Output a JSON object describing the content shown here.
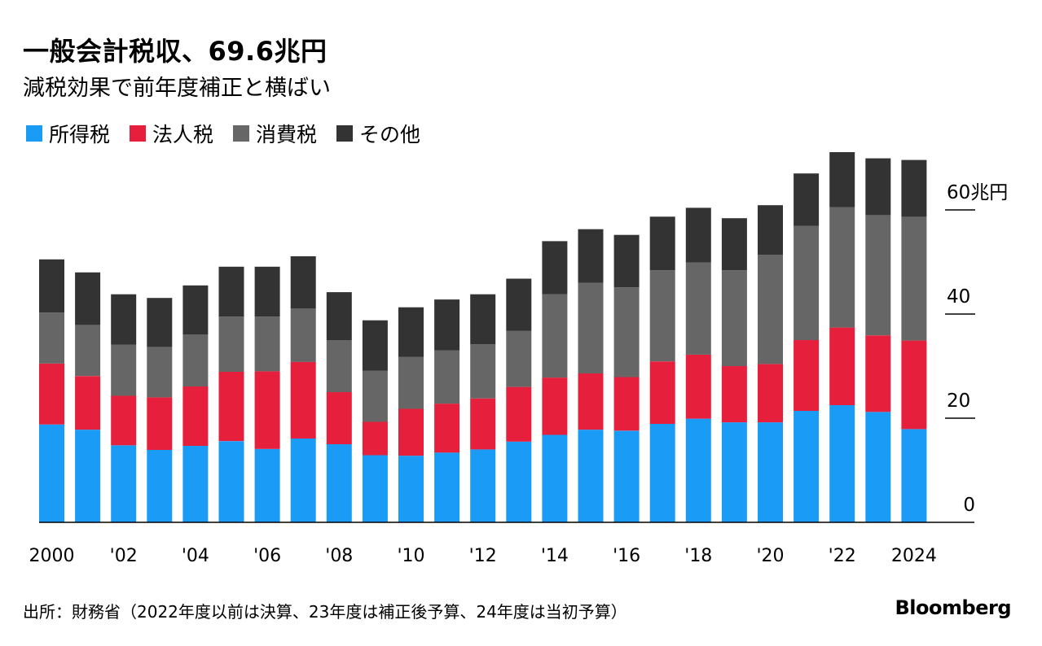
{
  "title": "一般会計税収、69.6兆円",
  "subtitle": "減税効果で前年度補正と横ばい",
  "legend": [
    {
      "label": "所得税",
      "color": "#1a9cf6"
    },
    {
      "label": "法人税",
      "color": "#e61f3c"
    },
    {
      "label": "消費税",
      "color": "#666666"
    },
    {
      "label": "その他",
      "color": "#333333"
    }
  ],
  "source": "出所：財務省（2022年度以前は決算、23年度は補正後予算、24年度は当初予算）",
  "brand": "Bloomberg",
  "chart_data": {
    "type": "bar",
    "stacked": true,
    "title": "一般会計税収、69.6兆円",
    "subtitle": "減税効果で前年度補正と横ばい",
    "categories": [
      "2000",
      "2001",
      "2002",
      "2003",
      "2004",
      "2005",
      "2006",
      "2007",
      "2008",
      "2009",
      "2010",
      "2011",
      "2012",
      "2013",
      "2014",
      "2015",
      "2016",
      "2017",
      "2018",
      "2019",
      "2020",
      "2021",
      "2022",
      "2023",
      "2024"
    ],
    "x_tick_labels": [
      "2000",
      "",
      "'02",
      "",
      "'04",
      "",
      "'06",
      "",
      "'08",
      "",
      "'10",
      "",
      "'12",
      "",
      "'14",
      "",
      "'16",
      "",
      "'18",
      "",
      "'20",
      "",
      "'22",
      "",
      "2024"
    ],
    "series": [
      {
        "name": "所得税",
        "color": "#1a9cf6",
        "values": [
          18.8,
          17.8,
          14.8,
          13.9,
          14.7,
          15.6,
          14.1,
          16.1,
          15.0,
          12.9,
          12.8,
          13.4,
          14.0,
          15.5,
          16.8,
          17.8,
          17.6,
          18.9,
          19.9,
          19.2,
          19.2,
          21.4,
          22.5,
          21.2,
          17.9
        ]
      },
      {
        "name": "法人税",
        "color": "#e61f3c",
        "values": [
          11.7,
          10.3,
          9.5,
          10.1,
          11.4,
          13.3,
          14.9,
          14.7,
          10.0,
          6.4,
          9.0,
          9.4,
          9.8,
          10.5,
          11.0,
          10.8,
          10.3,
          12.0,
          12.3,
          10.8,
          11.2,
          13.6,
          14.9,
          14.7,
          17.0
        ]
      },
      {
        "name": "消費税",
        "color": "#666666",
        "values": [
          9.8,
          9.8,
          9.8,
          9.7,
          10.0,
          10.6,
          10.5,
          10.3,
          10.0,
          9.8,
          10.0,
          10.2,
          10.4,
          10.8,
          16.0,
          17.4,
          17.2,
          17.5,
          17.7,
          18.4,
          21.0,
          21.9,
          23.1,
          23.1,
          23.8
        ]
      },
      {
        "name": "その他",
        "color": "#333333",
        "values": [
          10.2,
          10.1,
          9.7,
          9.4,
          9.4,
          9.6,
          9.6,
          10.0,
          9.2,
          9.7,
          9.5,
          9.8,
          9.6,
          10.0,
          10.2,
          10.3,
          10.1,
          10.3,
          10.5,
          10.0,
          9.5,
          10.1,
          10.6,
          10.9,
          10.9
        ]
      }
    ],
    "ylabel": "兆円",
    "y_ticks": [
      0,
      20,
      40,
      60
    ],
    "y_tick_labels": [
      "0",
      "20",
      "40",
      "60兆円"
    ],
    "ylim": [
      0,
      72
    ],
    "legend_position": "top-left",
    "y_axis_side": "right"
  }
}
